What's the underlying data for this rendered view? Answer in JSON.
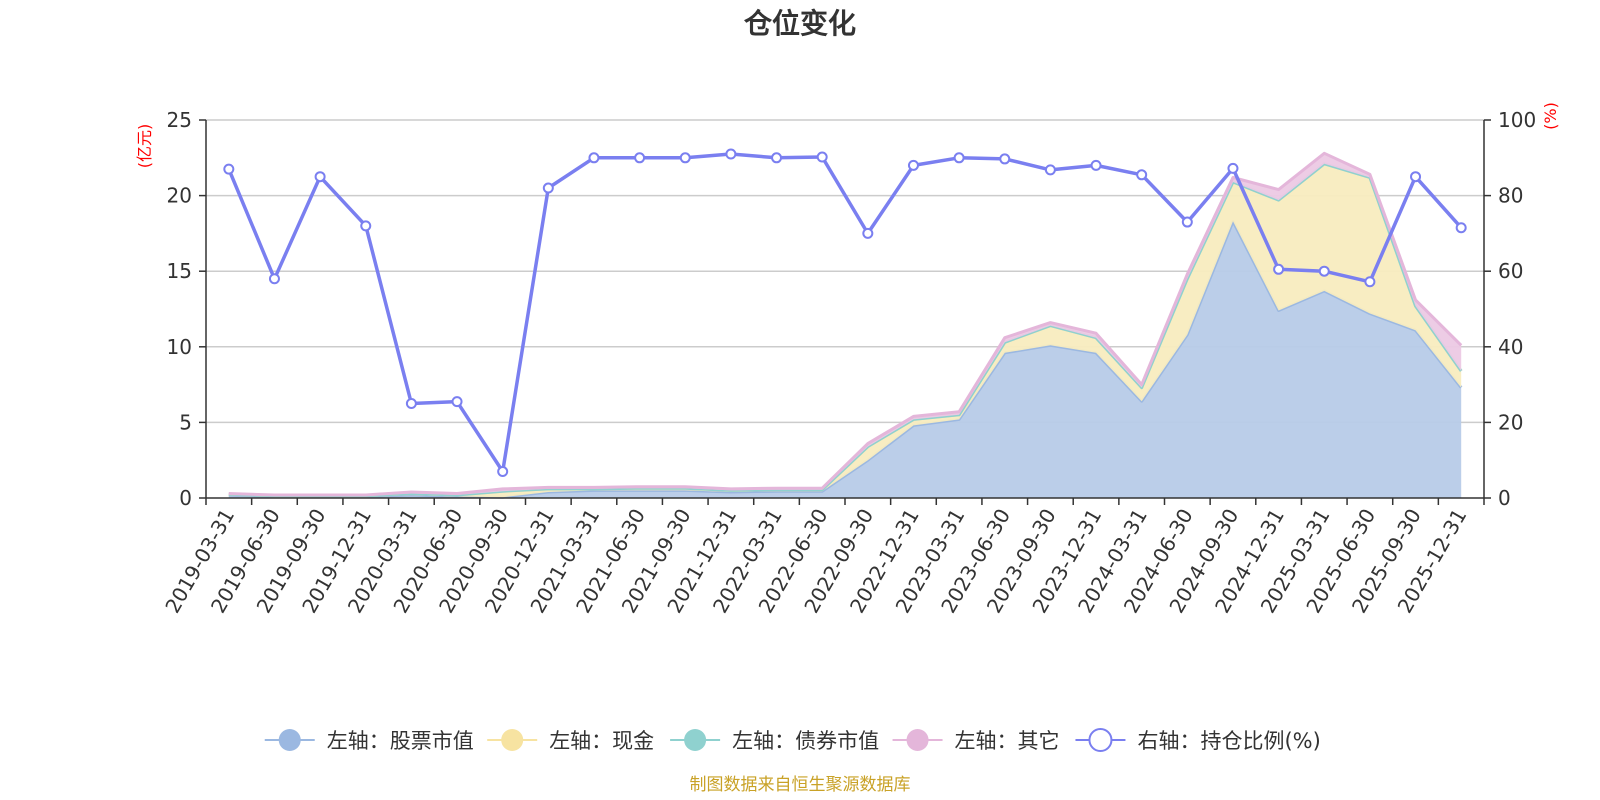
{
  "chart_data": {
    "type": "area",
    "title": "仓位变化",
    "left_unit": "(亿元)",
    "right_unit": "(%)",
    "categories": [
      "2019-03-31",
      "2019-06-30",
      "2019-09-30",
      "2019-12-31",
      "2020-03-31",
      "2020-06-30",
      "2020-09-30",
      "2020-12-31",
      "2021-03-31",
      "2021-06-30",
      "2021-09-30",
      "2021-12-31",
      "2022-03-31",
      "2022-06-30",
      "2022-09-30",
      "2022-12-31",
      "2023-03-31",
      "2023-06-30",
      "2023-09-30",
      "2023-12-31",
      "2024-03-31",
      "2024-06-30",
      "2024-09-30",
      "2024-12-31",
      "2025-03-31",
      "2025-06-30",
      "2025-09-30",
      "2025-12-31"
    ],
    "ylim_left": [
      0,
      25
    ],
    "yticks_left": [
      0,
      5,
      10,
      15,
      20,
      25
    ],
    "ylim_right": [
      0,
      100
    ],
    "yticks_right": [
      0,
      20,
      40,
      60,
      80,
      100
    ],
    "grid": true,
    "legend_position": "bottom",
    "series": [
      {
        "name": "左轴：股票市值",
        "axis": "left",
        "stack": true,
        "color": "#9bb8e1",
        "fill": "#b7cbe8",
        "values": [
          0.2,
          0.1,
          0.1,
          0.1,
          0.2,
          0.1,
          0.05,
          0.4,
          0.5,
          0.5,
          0.5,
          0.4,
          0.45,
          0.45,
          2.5,
          4.8,
          5.2,
          9.6,
          10.1,
          9.6,
          6.4,
          10.8,
          18.3,
          12.4,
          13.7,
          12.2,
          11.1,
          7.3
        ]
      },
      {
        "name": "左轴：现金",
        "axis": "left",
        "stack": true,
        "color": "#f7e3a1",
        "fill": "#f8ecbf",
        "values": [
          0.05,
          0.05,
          0.05,
          0.05,
          0.1,
          0.1,
          0.4,
          0.2,
          0.1,
          0.15,
          0.15,
          0.1,
          0.1,
          0.1,
          0.9,
          0.4,
          0.3,
          0.7,
          1.3,
          1.0,
          0.9,
          3.7,
          2.6,
          7.3,
          8.4,
          9.0,
          1.6,
          1.1
        ]
      },
      {
        "name": "左轴：债券市值",
        "axis": "left",
        "stack": true,
        "color": "#8fd1cf",
        "fill": "#b4e0de",
        "values": [
          0,
          0,
          0,
          0,
          0,
          0,
          0,
          0,
          0,
          0,
          0,
          0,
          0,
          0,
          0,
          0,
          0,
          0,
          0,
          0,
          0,
          0,
          0,
          0,
          0,
          0,
          0,
          0
        ]
      },
      {
        "name": "左轴：其它",
        "axis": "left",
        "stack": true,
        "color": "#e4b6da",
        "fill": "#ecc9e4",
        "values": [
          0.05,
          0.05,
          0.05,
          0.05,
          0.1,
          0.1,
          0.15,
          0.1,
          0.1,
          0.1,
          0.1,
          0.1,
          0.1,
          0.1,
          0.2,
          0.2,
          0.2,
          0.3,
          0.2,
          0.3,
          0.2,
          0.3,
          0.3,
          0.7,
          0.7,
          0.2,
          0.4,
          1.7
        ]
      },
      {
        "name": "右轴：持仓比例(%)",
        "axis": "right",
        "stack": false,
        "color": "#7a7ff0",
        "values": [
          87,
          58,
          85,
          72,
          25,
          25.5,
          7,
          82,
          90,
          90,
          90,
          91,
          90,
          90.2,
          70,
          88,
          90,
          89.7,
          86.8,
          88,
          85.5,
          73,
          87.2,
          60.5,
          60,
          57.2,
          85,
          71.5
        ]
      }
    ]
  },
  "source_note": "制图数据来自恒生聚源数据库"
}
